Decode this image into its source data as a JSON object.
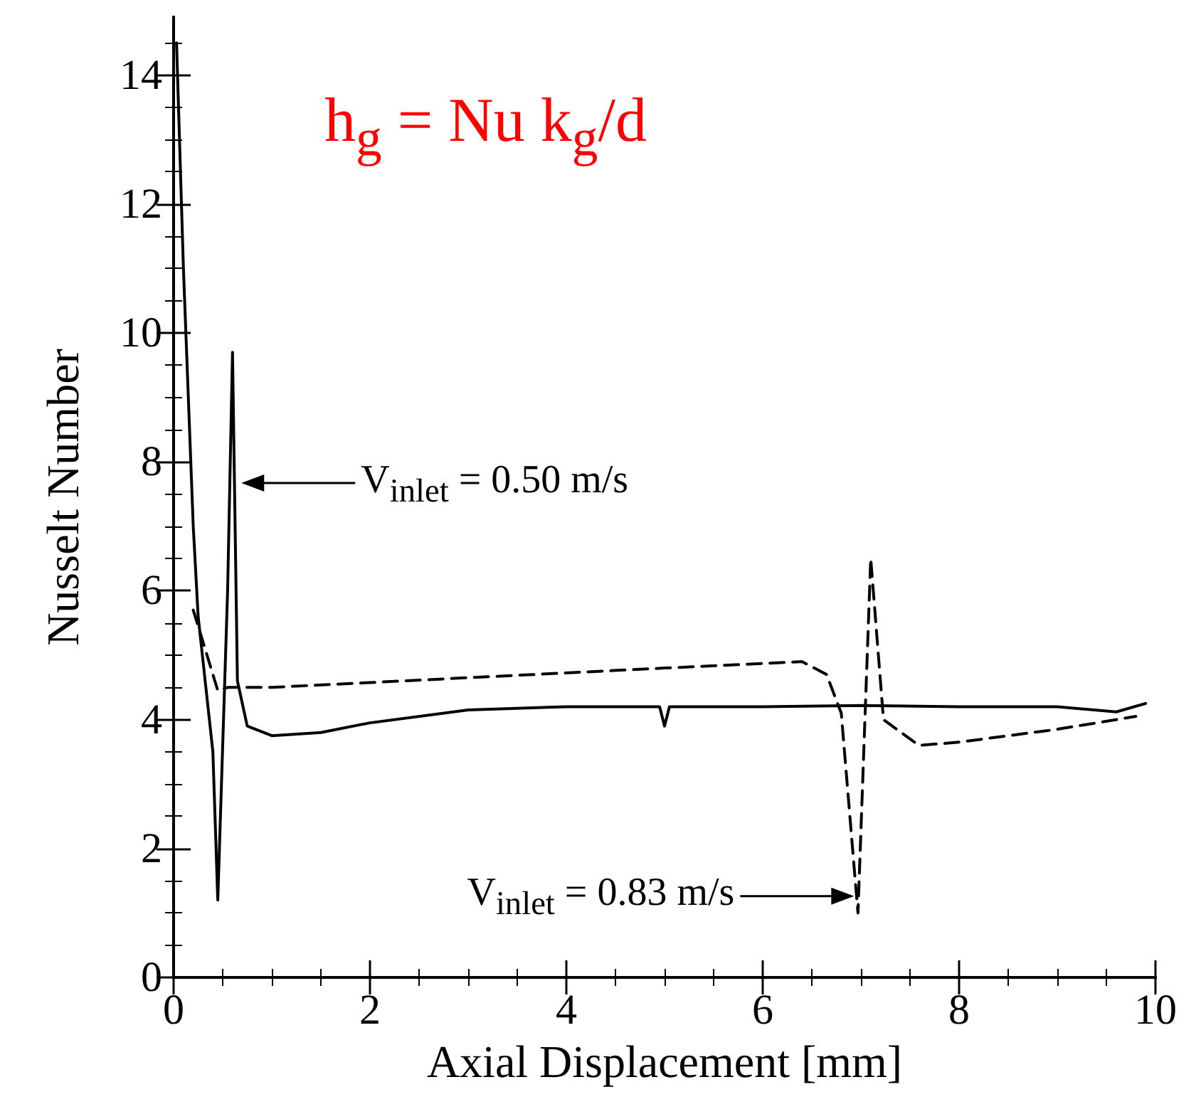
{
  "chart_data": {
    "type": "line",
    "xlabel": "Axial Displacement [mm]",
    "ylabel": "Nusselt Number",
    "xlim": [
      0,
      10
    ],
    "ylim": [
      0,
      14.9
    ],
    "xticks": [
      0,
      2,
      4,
      6,
      8,
      10
    ],
    "yticks": [
      0,
      2,
      4,
      6,
      8,
      10,
      12,
      14
    ],
    "grid": false,
    "marker": "none",
    "series": [
      {
        "color": "#000000",
        "line_style": "solid",
        "x": [
          0.03,
          0.1,
          0.2,
          0.25,
          0.4,
          0.45,
          0.55,
          0.6,
          0.65,
          0.75,
          1,
          1.5,
          2,
          3,
          4,
          4.95,
          5,
          5.05,
          6,
          7,
          8,
          9,
          9.6,
          9.9
        ],
        "values": [
          14.5,
          11,
          7,
          5.6,
          3.5,
          1.2,
          6,
          9.7,
          4.6,
          3.9,
          3.75,
          3.8,
          3.95,
          4.15,
          4.2,
          4.2,
          3.9,
          4.2,
          4.2,
          4.22,
          4.2,
          4.2,
          4.12,
          4.25
        ]
      },
      {
        "color": "#000000",
        "line_style": "dashed",
        "x": [
          0.2,
          0.45,
          0.55,
          1,
          3,
          5,
          6.4,
          6.65,
          6.8,
          6.97,
          7.1,
          7.23,
          7.59,
          8,
          9,
          9.8
        ],
        "values": [
          5.7,
          4.45,
          4.5,
          4.5,
          4.65,
          4.8,
          4.9,
          4.7,
          4.1,
          1.0,
          6.5,
          4.0,
          3.6,
          3.65,
          3.85,
          4.05
        ]
      }
    ],
    "annotations": [
      "h$_{g}$ = Nu k$_{g}$/d",
      {
        "text": "V$_{inlet}$ = 0.50 m/s",
        "x": 0.69,
        "y": 7.67
      },
      {
        "text": "V$_{inlet}$ = 0.83 m/s",
        "x": 6.93,
        "y": 1.26
      }
    ]
  }
}
